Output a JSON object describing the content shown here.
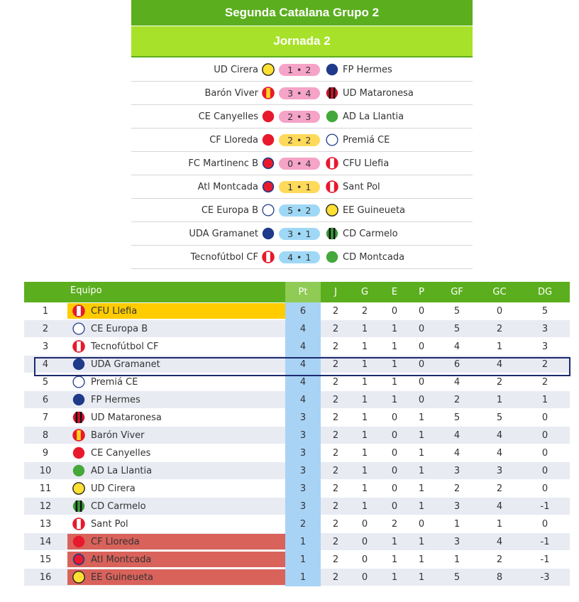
{
  "header": {
    "league": "Segunda Catalana  Grupo 2",
    "round": "Jornada 2"
  },
  "colors": {
    "green_dark": "#5bae1e",
    "green_light": "#a8e12a",
    "pink_score": "#f5a3c7",
    "yellow_score": "#ffd95a",
    "blue_score": "#9fd8f6",
    "leader": "#ffcc00",
    "relegation": "#d9625b",
    "points_col": "#a9d3f5",
    "highlight_border": "#1b2a6e"
  },
  "matches": [
    {
      "home": "UD Cirera",
      "home_icon": "yellow-crest-icon",
      "score": "1 • 2",
      "score_color": "pink",
      "away": "FP Hermes",
      "away_icon": "navy-crest-icon"
    },
    {
      "home": "Barón Viver",
      "home_icon": "red-yellow-striped-crest-icon",
      "score": "3 • 4",
      "score_color": "pink",
      "away": "UD Mataronesa",
      "away_icon": "red-black-striped-crest-icon"
    },
    {
      "home": "CE Canyelles",
      "home_icon": "red-crest-icon",
      "score": "2 • 3",
      "score_color": "pink",
      "away": "AD La Llantia",
      "away_icon": "green-crest-icon"
    },
    {
      "home": "CF Lloreda",
      "home_icon": "red-crest-icon",
      "score": "2 • 2",
      "score_color": "yellow",
      "away": "Premiá CE",
      "away_icon": "white-crest-icon"
    },
    {
      "home": "FC Martinenc B",
      "home_icon": "red-blue-crest-icon",
      "score": "0 • 4",
      "score_color": "pink",
      "away": "CFU Llefia",
      "away_icon": "red-white-striped-crest-icon"
    },
    {
      "home": "Atl Montcada",
      "home_icon": "red-blue-crest-icon",
      "score": "1 • 1",
      "score_color": "yellow",
      "away": "Sant Pol",
      "away_icon": "red-white-striped-crest-icon"
    },
    {
      "home": "CE Europa B",
      "home_icon": "white-crest-icon",
      "score": "5 • 2",
      "score_color": "blue",
      "away": "EE Guineueta",
      "away_icon": "yellow-crest-icon"
    },
    {
      "home": "UDA Gramanet",
      "home_icon": "navy-crest-icon",
      "score": "3 • 1",
      "score_color": "blue",
      "away": "CD Carmelo",
      "away_icon": "green-black-striped-crest-icon"
    },
    {
      "home": "Tecnofútbol CF",
      "home_icon": "red-white-striped-crest-icon",
      "score": "4 • 1",
      "score_color": "blue",
      "away": "CD Montcada",
      "away_icon": "green-crest-icon"
    }
  ],
  "standings": {
    "headers": {
      "team": "Equipo",
      "pt": "Pt",
      "j": "J",
      "g": "G",
      "e": "E",
      "p": "P",
      "gf": "GF",
      "gc": "GC",
      "dg": "DG"
    },
    "rows": [
      {
        "pos": "1",
        "team": "CFU Llefia",
        "icon": "red-white-striped-crest-icon",
        "pt": "6",
        "j": "2",
        "g": "2",
        "e": "0",
        "p": "0",
        "gf": "5",
        "gc": "0",
        "dg": "5",
        "zone": "leader"
      },
      {
        "pos": "2",
        "team": "CE Europa B",
        "icon": "white-crest-icon",
        "pt": "4",
        "j": "2",
        "g": "1",
        "e": "1",
        "p": "0",
        "gf": "5",
        "gc": "2",
        "dg": "3",
        "zone": ""
      },
      {
        "pos": "3",
        "team": "Tecnofútbol CF",
        "icon": "red-white-striped-crest-icon",
        "pt": "4",
        "j": "2",
        "g": "1",
        "e": "1",
        "p": "0",
        "gf": "4",
        "gc": "1",
        "dg": "3",
        "zone": ""
      },
      {
        "pos": "4",
        "team": "UDA Gramanet",
        "icon": "navy-crest-icon",
        "pt": "4",
        "j": "2",
        "g": "1",
        "e": "1",
        "p": "0",
        "gf": "6",
        "gc": "4",
        "dg": "2",
        "zone": ""
      },
      {
        "pos": "5",
        "team": "Premiá CE",
        "icon": "white-crest-icon",
        "pt": "4",
        "j": "2",
        "g": "1",
        "e": "1",
        "p": "0",
        "gf": "4",
        "gc": "2",
        "dg": "2",
        "zone": ""
      },
      {
        "pos": "6",
        "team": "FP Hermes",
        "icon": "navy-crest-icon",
        "pt": "4",
        "j": "2",
        "g": "1",
        "e": "1",
        "p": "0",
        "gf": "2",
        "gc": "1",
        "dg": "1",
        "zone": ""
      },
      {
        "pos": "7",
        "team": "UD Mataronesa",
        "icon": "red-black-striped-crest-icon",
        "pt": "3",
        "j": "2",
        "g": "1",
        "e": "0",
        "p": "1",
        "gf": "5",
        "gc": "5",
        "dg": "0",
        "zone": ""
      },
      {
        "pos": "8",
        "team": "Barón Viver",
        "icon": "red-yellow-striped-crest-icon",
        "pt": "3",
        "j": "2",
        "g": "1",
        "e": "0",
        "p": "1",
        "gf": "4",
        "gc": "4",
        "dg": "0",
        "zone": ""
      },
      {
        "pos": "9",
        "team": "CE Canyelles",
        "icon": "red-crest-icon",
        "pt": "3",
        "j": "2",
        "g": "1",
        "e": "0",
        "p": "1",
        "gf": "4",
        "gc": "4",
        "dg": "0",
        "zone": ""
      },
      {
        "pos": "10",
        "team": "AD La Llantia",
        "icon": "green-crest-icon",
        "pt": "3",
        "j": "2",
        "g": "1",
        "e": "0",
        "p": "1",
        "gf": "3",
        "gc": "3",
        "dg": "0",
        "zone": ""
      },
      {
        "pos": "11",
        "team": "UD Cirera",
        "icon": "yellow-crest-icon",
        "pt": "3",
        "j": "2",
        "g": "1",
        "e": "0",
        "p": "1",
        "gf": "2",
        "gc": "2",
        "dg": "0",
        "zone": ""
      },
      {
        "pos": "12",
        "team": "CD Carmelo",
        "icon": "green-black-striped-crest-icon",
        "pt": "3",
        "j": "2",
        "g": "1",
        "e": "0",
        "p": "1",
        "gf": "3",
        "gc": "4",
        "dg": "-1",
        "zone": ""
      },
      {
        "pos": "13",
        "team": "Sant Pol",
        "icon": "red-white-striped-crest-icon",
        "pt": "2",
        "j": "2",
        "g": "0",
        "e": "2",
        "p": "0",
        "gf": "1",
        "gc": "1",
        "dg": "0",
        "zone": ""
      },
      {
        "pos": "14",
        "team": "CF Lloreda",
        "icon": "red-crest-icon",
        "pt": "1",
        "j": "2",
        "g": "0",
        "e": "1",
        "p": "1",
        "gf": "3",
        "gc": "4",
        "dg": "-1",
        "zone": "relegation"
      },
      {
        "pos": "15",
        "team": "Atl Montcada",
        "icon": "red-blue-crest-icon",
        "pt": "1",
        "j": "2",
        "g": "0",
        "e": "1",
        "p": "1",
        "gf": "1",
        "gc": "2",
        "dg": "-1",
        "zone": "relegation"
      },
      {
        "pos": "16",
        "team": "EE Guineueta",
        "icon": "yellow-crest-icon",
        "pt": "1",
        "j": "2",
        "g": "0",
        "e": "1",
        "p": "1",
        "gf": "5",
        "gc": "8",
        "dg": "-3",
        "zone": "relegation"
      }
    ],
    "highlighted_team": "UDA Gramanet"
  }
}
